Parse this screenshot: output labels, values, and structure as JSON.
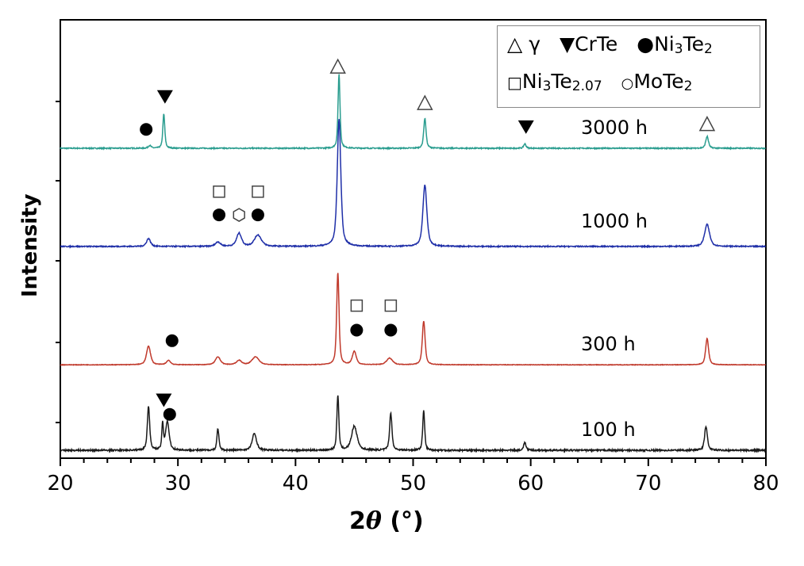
{
  "chart_data": {
    "type": "line",
    "xlabel_prefix": "2",
    "xlabel_symbol": "θ",
    "xlabel_unit": " (°)",
    "ylabel": "Intensity",
    "xlim": [
      20,
      80
    ],
    "xticks": [
      20,
      30,
      40,
      50,
      60,
      70,
      80
    ],
    "ylim": [
      0,
      100
    ],
    "yticks_labeled": false,
    "grid": false,
    "legend_position": "top-right",
    "legend": [
      {
        "symbol": "open-triangle-up",
        "label": "γ"
      },
      {
        "symbol": "filled-triangle-down",
        "label": "CrTe"
      },
      {
        "symbol": "filled-circle",
        "label_main": "Ni",
        "label_sub1": "3",
        "label_mid": "Te",
        "label_sub2": "2"
      },
      {
        "symbol": "open-square",
        "label_main": "Ni",
        "label_sub1": "3",
        "label_mid": "Te",
        "label_sub2": "2.07"
      },
      {
        "symbol": "open-circle",
        "label_main": "MoTe",
        "label_sub2": "2"
      }
    ],
    "series": [
      {
        "name": "3000 h",
        "color": "#2a9d8f",
        "baseline": 70.7,
        "noise": 0.12,
        "peaks": [
          [
            27.6,
            0.6,
            0.15
          ],
          [
            28.8,
            7.8,
            0.1
          ],
          [
            43.7,
            17,
            0.1
          ],
          [
            51.0,
            6.8,
            0.12
          ],
          [
            59.5,
            1.0,
            0.12
          ],
          [
            75.0,
            2.7,
            0.14
          ]
        ],
        "markers": [
          [
            "filled-circle",
            27.3,
            75.0
          ],
          [
            "filled-triangle-down",
            28.9,
            82.5
          ],
          [
            "open-triangle-up",
            43.6,
            89.3
          ],
          [
            "open-triangle-up",
            51.0,
            81.0
          ],
          [
            "filled-triangle-down",
            59.6,
            75.6
          ],
          [
            "open-triangle-up",
            75.0,
            76.2
          ]
        ]
      },
      {
        "name": "1000 h",
        "color": "#1f2fa8",
        "baseline": 48.3,
        "noise": 0.12,
        "peaks": [
          [
            27.5,
            1.8,
            0.2
          ],
          [
            33.4,
            1.0,
            0.25
          ],
          [
            35.2,
            3.0,
            0.25
          ],
          [
            36.8,
            2.6,
            0.35
          ],
          [
            43.7,
            29,
            0.18
          ],
          [
            51.0,
            14,
            0.2
          ],
          [
            75.0,
            5,
            0.25
          ]
        ],
        "markers": [
          [
            "open-square",
            33.5,
            60.8
          ],
          [
            "open-square",
            36.8,
            60.8
          ],
          [
            "filled-circle",
            33.5,
            55.5
          ],
          [
            "open-circle",
            35.2,
            55.5
          ],
          [
            "filled-circle",
            36.8,
            55.5
          ]
        ]
      },
      {
        "name": "300 h",
        "color": "#c0392b",
        "baseline": 21.3,
        "noise": 0.06,
        "peaks": [
          [
            27.5,
            4.3,
            0.2
          ],
          [
            29.2,
            1.0,
            0.2
          ],
          [
            33.4,
            1.8,
            0.25
          ],
          [
            35.2,
            1.0,
            0.25
          ],
          [
            36.6,
            1.8,
            0.35
          ],
          [
            43.6,
            21,
            0.12
          ],
          [
            45.0,
            3.0,
            0.2
          ],
          [
            48.0,
            1.5,
            0.3
          ],
          [
            50.9,
            10,
            0.14
          ],
          [
            75.0,
            6,
            0.15
          ]
        ],
        "markers": [
          [
            "filled-circle",
            29.5,
            26.8
          ],
          [
            "open-square",
            45.2,
            34.8
          ],
          [
            "open-square",
            48.1,
            34.8
          ],
          [
            "filled-circle",
            45.2,
            29.2
          ],
          [
            "filled-circle",
            48.1,
            29.2
          ]
        ]
      },
      {
        "name": "100 h",
        "color": "#1a1a1a",
        "baseline": 1.8,
        "noise": 0.18,
        "peaks": [
          [
            27.5,
            10,
            0.12
          ],
          [
            28.7,
            6,
            0.08
          ],
          [
            29.1,
            6.5,
            0.18
          ],
          [
            33.4,
            5,
            0.1
          ],
          [
            36.5,
            3.8,
            0.22
          ],
          [
            43.6,
            12.5,
            0.1
          ],
          [
            45.0,
            5.5,
            0.28
          ],
          [
            48.1,
            8.5,
            0.12
          ],
          [
            50.9,
            9,
            0.1
          ],
          [
            59.5,
            1.8,
            0.12
          ],
          [
            74.9,
            5.5,
            0.14
          ]
        ],
        "markers": [
          [
            "filled-triangle-down",
            28.8,
            13.3
          ],
          [
            "filled-circle",
            29.3,
            10.0
          ]
        ]
      }
    ]
  }
}
